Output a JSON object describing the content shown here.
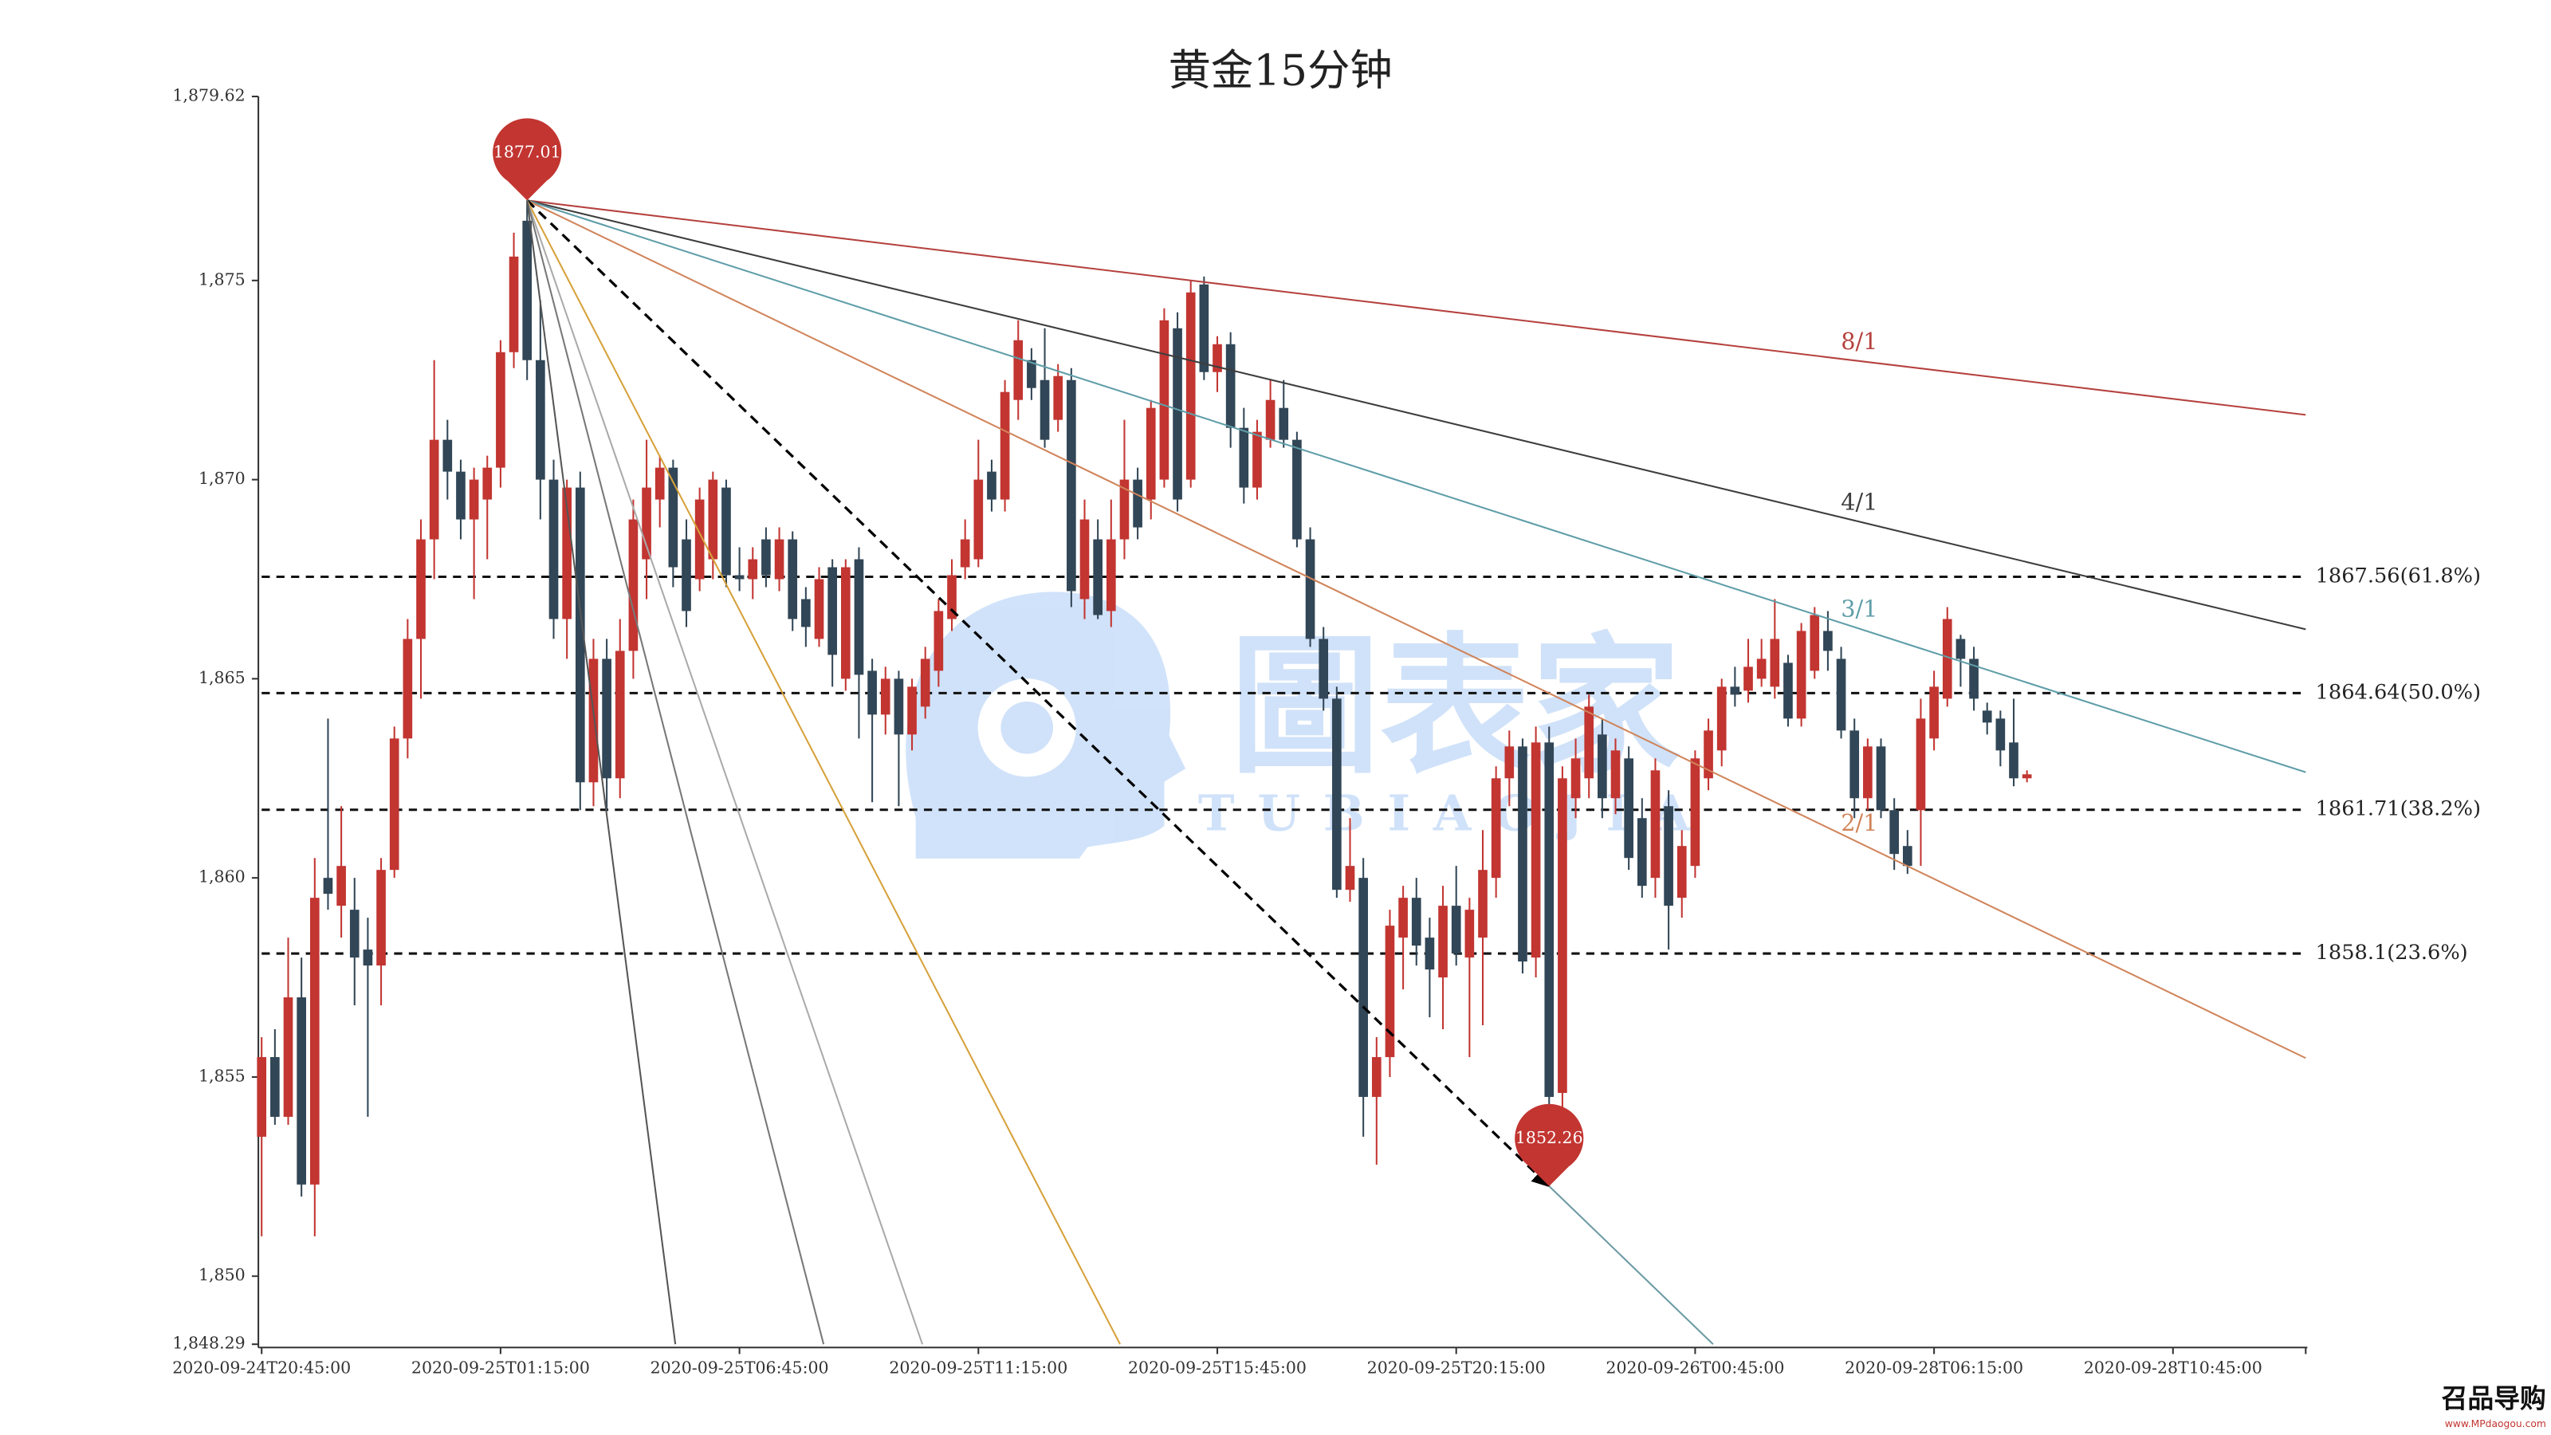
{
  "chart_data": {
    "type": "candlestick",
    "title": "黄金15分钟",
    "categories": [
      "2020-09-24T20:45:00",
      null,
      null,
      null,
      null,
      null,
      null,
      null,
      null,
      null,
      null,
      null,
      null,
      null,
      null,
      null,
      null,
      null,
      "2020-09-25T01:15:00",
      null,
      null,
      null,
      null,
      null,
      null,
      null,
      null,
      null,
      null,
      null,
      null,
      null,
      null,
      null,
      null,
      null,
      "2020-09-25T06:45:00",
      null,
      null,
      null,
      null,
      null,
      null,
      null,
      null,
      null,
      null,
      null,
      null,
      null,
      null,
      null,
      null,
      null,
      "2020-09-25T11:15:00",
      null,
      null,
      null,
      null,
      null,
      null,
      null,
      null,
      null,
      null,
      null,
      null,
      null,
      null,
      null,
      null,
      null,
      "2020-09-25T15:45:00",
      null,
      null,
      null,
      null,
      null,
      null,
      null,
      null,
      null,
      null,
      null,
      null,
      null,
      null,
      null,
      null,
      null,
      "2020-09-25T20:15:00",
      null,
      null,
      null,
      null,
      null,
      null,
      null,
      null,
      null,
      null,
      null,
      null,
      null,
      null,
      null,
      null,
      null,
      "2020-09-26T00:45:00",
      null,
      null,
      null,
      null,
      null,
      null,
      null,
      null,
      null,
      null,
      null,
      null,
      null,
      null,
      null,
      null,
      null,
      "2020-09-28T06:15:00",
      null,
      null,
      null,
      null,
      null,
      null,
      null,
      null,
      null,
      null,
      null,
      null,
      null,
      null,
      null,
      null,
      null,
      "2020-09-28T10:45:00",
      null,
      null,
      null,
      null,
      null,
      null,
      null,
      null,
      null
    ],
    "open": [
      1853.5,
      1855.5,
      1854,
      1857,
      1852.3,
      1860,
      1859.3,
      1859.2,
      1858.2,
      1857.8,
      1860.2,
      1863.5,
      1866,
      1868.5,
      1871,
      1870.2,
      1869,
      1869.5,
      1870.3,
      1873.2,
      1876.5,
      1873,
      1870,
      1866.5,
      1869.8,
      1862.4,
      1865.5,
      1862.5,
      1865.7,
      1868,
      1869.5,
      1870.3,
      1868.5,
      1867.5,
      1868,
      1869.8,
      1867.6,
      1867.5,
      1868.5,
      1867.5,
      1868.5,
      1867,
      1866,
      1867.8,
      1865,
      1868,
      1865.2,
      1864.1,
      1865,
      1863.6,
      1864.3,
      1865.2,
      1866.5,
      1867.8,
      1868,
      1870.2,
      1869.5,
      1872,
      1873,
      1872.5,
      1871.5,
      1872.5,
      1867,
      1868.5,
      1866.7,
      1868.5,
      1870,
      1869.5,
      1870,
      1873.8,
      1870,
      1874.9,
      1872.7,
      1873.4,
      1871.3,
      1869.8,
      1871,
      1871.8,
      1871,
      1868.5,
      1866,
      1864.5,
      1859.7,
      1860,
      1854.5,
      1855.5,
      1858.5,
      1859.5,
      1858.5,
      1857.5,
      1859.3,
      1858,
      1858.5,
      1860,
      1862.5,
      1863.3,
      1858,
      1863.4,
      1854.6,
      1862,
      1862.5,
      1863.6,
      1862,
      1863,
      1861.5,
      1860,
      1861.8,
      1859.5,
      1860.3,
      1862.5,
      1863.2,
      1864.8,
      1864.7,
      1865,
      1864.8,
      1865.4,
      1864,
      1865.2,
      1866.2,
      1865.5,
      1863.7,
      1862,
      1863.3,
      1861.7,
      1860.8,
      1861.7,
      1863.5,
      1864.5,
      1866,
      1865.5,
      1864.2,
      1864,
      1863.4,
      1862.5,
      null,
      null,
      null,
      null,
      null,
      null,
      null,
      null,
      null,
      null,
      null,
      null,
      null,
      null,
      null,
      null,
      null,
      null,
      null,
      null
    ],
    "high": [
      1856,
      1856.2,
      1858.5,
      1858,
      1860.5,
      1864,
      1861.8,
      1860,
      1859,
      1860.5,
      1863.8,
      1866.5,
      1869,
      1873,
      1871.5,
      1870.5,
      1870.3,
      1870.6,
      1873.5,
      1876.2,
      1877.01,
      1874.5,
      1870.5,
      1870,
      1870.2,
      1866,
      1866,
      1866.5,
      1869.5,
      1871,
      1870.6,
      1870.5,
      1869,
      1869.8,
      1870.2,
      1870,
      1868.3,
      1868.3,
      1868.8,
      1868.8,
      1868.7,
      1867.3,
      1867.8,
      1868,
      1868,
      1868.3,
      1865.5,
      1865.3,
      1865.2,
      1865,
      1865.8,
      1867,
      1868,
      1869,
      1871,
      1870.5,
      1872.5,
      1874,
      1873.3,
      1873.8,
      1872.9,
      1872.8,
      1869.5,
      1869,
      1869.5,
      1871.5,
      1870.3,
      1872,
      1874.3,
      1874.2,
      1875,
      1875.1,
      1873.6,
      1873.7,
      1871.8,
      1871.5,
      1872.5,
      1872.5,
      1871.2,
      1868.8,
      1866.3,
      1864.8,
      1861.5,
      1860.5,
      1856,
      1859.2,
      1859.8,
      1860,
      1859,
      1859.8,
      1860.3,
      1859.5,
      1861.2,
      1862.8,
      1863.7,
      1863.5,
      1863.8,
      1863.8,
      1862.8,
      1863.5,
      1864.6,
      1864,
      1863.5,
      1863.3,
      1862,
      1863,
      1862.2,
      1861.2,
      1863.2,
      1864,
      1865,
      1865.3,
      1866,
      1866,
      1867,
      1865.6,
      1866.4,
      1866.8,
      1866.7,
      1865.8,
      1864,
      1863.5,
      1863.5,
      1862,
      1861.2,
      1864.5,
      1865.2,
      1866.8,
      1866.1,
      1865.8,
      1864.4,
      1864.2,
      1864.5,
      1862.7,
      null,
      null,
      null,
      null,
      null,
      null,
      null,
      null,
      null,
      null,
      null,
      null,
      null,
      null,
      null,
      null,
      null,
      null,
      null,
      null
    ],
    "low": [
      1851,
      1853.8,
      1853.8,
      1852,
      1851,
      1859.2,
      1858.5,
      1856.8,
      1854,
      1856.8,
      1860,
      1863,
      1864.5,
      1867.5,
      1869.5,
      1868.5,
      1867,
      1868,
      1869.8,
      1872.8,
      1872.5,
      1869,
      1866,
      1865.5,
      1861.7,
      1861.8,
      1861.7,
      1862,
      1865,
      1867,
      1868.8,
      1867.3,
      1866.3,
      1867.2,
      1867.5,
      1867.3,
      1867.2,
      1867,
      1867.3,
      1867.2,
      1866.2,
      1865.8,
      1865.8,
      1864.8,
      1864.7,
      1863.5,
      1861.9,
      1863.6,
      1861.8,
      1863.2,
      1864,
      1864.8,
      1866.2,
      1867.5,
      1867.8,
      1869.2,
      1869.2,
      1871.5,
      1872,
      1870.8,
      1871.2,
      1866.8,
      1866.5,
      1866.5,
      1866.3,
      1868,
      1868.5,
      1869,
      1869.8,
      1869.2,
      1869.8,
      1872.5,
      1872.2,
      1870.8,
      1869.4,
      1869.5,
      1870.8,
      1870.8,
      1868.3,
      1865.8,
      1864.2,
      1859.5,
      1859.4,
      1853.5,
      1852.8,
      1855,
      1857.2,
      1857.8,
      1856.5,
      1856.2,
      1857.8,
      1855.5,
      1856.3,
      1859.5,
      1861.8,
      1857.6,
      1857.5,
      1852.26,
      1854.2,
      1861.5,
      1862,
      1861.5,
      1861.6,
      1860.2,
      1859.5,
      1859.5,
      1858.2,
      1859,
      1860,
      1862.2,
      1862.8,
      1864.3,
      1864.4,
      1864.8,
      1864.5,
      1863.8,
      1863.8,
      1865,
      1865.2,
      1863.5,
      1861.5,
      1861.7,
      1861.5,
      1860.2,
      1860.1,
      1860.3,
      1863.2,
      1864.3,
      1864.8,
      1864.2,
      1863.6,
      1862.8,
      1862.3,
      1862.4,
      null,
      null,
      null,
      null,
      null,
      null,
      null,
      null,
      null,
      null,
      null,
      null,
      null,
      null,
      null,
      null,
      null,
      null,
      null,
      null
    ],
    "close": [
      1855.5,
      1854,
      1857,
      1852.3,
      1859.5,
      1859.6,
      1860.3,
      1858,
      1857.8,
      1860.2,
      1863.5,
      1866,
      1868.5,
      1871,
      1870.2,
      1869,
      1870,
      1870.3,
      1873.2,
      1875.6,
      1873,
      1870,
      1866.5,
      1869.8,
      1862.4,
      1865.5,
      1862.5,
      1865.7,
      1869,
      1869.8,
      1870.3,
      1867.8,
      1866.7,
      1869.5,
      1870,
      1867.6,
      1867.5,
      1868,
      1867.6,
      1868.5,
      1866.5,
      1866.3,
      1867.5,
      1865.6,
      1867.8,
      1865.1,
      1864.1,
      1865,
      1863.6,
      1864.8,
      1865.5,
      1866.7,
      1867.6,
      1868.5,
      1870,
      1869.5,
      1872.2,
      1873.5,
      1872.3,
      1871,
      1872.6,
      1867.2,
      1869,
      1866.6,
      1868.5,
      1870,
      1868.8,
      1871.8,
      1874,
      1869.5,
      1874.7,
      1872.7,
      1873.4,
      1871.3,
      1869.8,
      1871.2,
      1872,
      1871,
      1868.5,
      1866,
      1864.5,
      1859.7,
      1860.3,
      1854.5,
      1855.5,
      1858.8,
      1859.5,
      1858.3,
      1857.7,
      1859.3,
      1858.1,
      1859.2,
      1860.2,
      1862.5,
      1863.3,
      1857.9,
      1863.4,
      1854.5,
      1862.5,
      1863,
      1864.3,
      1862,
      1863.2,
      1860.5,
      1859.8,
      1862.7,
      1859.3,
      1860.8,
      1863,
      1863.7,
      1864.8,
      1864.6,
      1865.3,
      1865.5,
      1866,
      1864,
      1866.2,
      1866.6,
      1865.7,
      1863.7,
      1862,
      1863.3,
      1861.7,
      1860.6,
      1860.3,
      1864,
      1864.8,
      1866.5,
      1865.5,
      1864.5,
      1863.9,
      1863.2,
      1862.5,
      1862.6,
      null,
      null,
      null,
      null,
      null,
      null,
      null,
      null,
      null,
      null,
      null,
      null,
      null,
      null,
      null,
      null,
      null,
      null,
      null,
      null
    ],
    "up_color": "#c23531",
    "down_color": "#314656",
    "ylim": [
      1848.29,
      1879.62
    ],
    "yticks": [
      {
        "value": 1848.29,
        "label": "1,848.29"
      },
      {
        "value": 1850,
        "label": "1,850"
      },
      {
        "value": 1855,
        "label": "1,855"
      },
      {
        "value": 1860,
        "label": "1,860"
      },
      {
        "value": 1865,
        "label": "1,865"
      },
      {
        "value": 1870,
        "label": "1,870"
      },
      {
        "value": 1875,
        "label": "1,875"
      },
      {
        "value": 1879.62,
        "label": "1,879.62"
      }
    ],
    "levels": [
      {
        "value": 1867.56,
        "label": "1867.56(61.8%)"
      },
      {
        "value": 1864.64,
        "label": "1864.64(50.0%)"
      },
      {
        "value": 1861.71,
        "label": "1861.71(38.2%)"
      },
      {
        "value": 1858.1,
        "label": "1858.1(23.6%)"
      }
    ],
    "fan": {
      "from": 1877.01,
      "to": 1852.26,
      "marker_color": "#c23531",
      "lines": [
        {
          "label": "8/1",
          "ratio": 8,
          "color": "#b5413e"
        },
        {
          "label": "4/1",
          "ratio": 4,
          "color": "#3d3d3d"
        },
        {
          "label": "3/1",
          "ratio": 3,
          "color": "#5f9ea8"
        },
        {
          "label": "2/1",
          "ratio": 2,
          "color": "#d0845a"
        },
        {
          "ratio": 1,
          "color": "#000000",
          "dashed": true,
          "extension_color": "#6b9aa3"
        },
        {
          "ratio": 0.5,
          "color": "#d6a13a"
        },
        {
          "ratio": 0.3333,
          "color": "#aaaaaa"
        },
        {
          "ratio": 0.25,
          "color": "#777777"
        },
        {
          "ratio": 0.125,
          "color": "#555555"
        }
      ]
    },
    "watermark": {
      "title": "圖表家",
      "subtitle": "TUBIAOJIA"
    },
    "site_logo": "召品导购",
    "site_url": "www.MPdaogou.com"
  }
}
